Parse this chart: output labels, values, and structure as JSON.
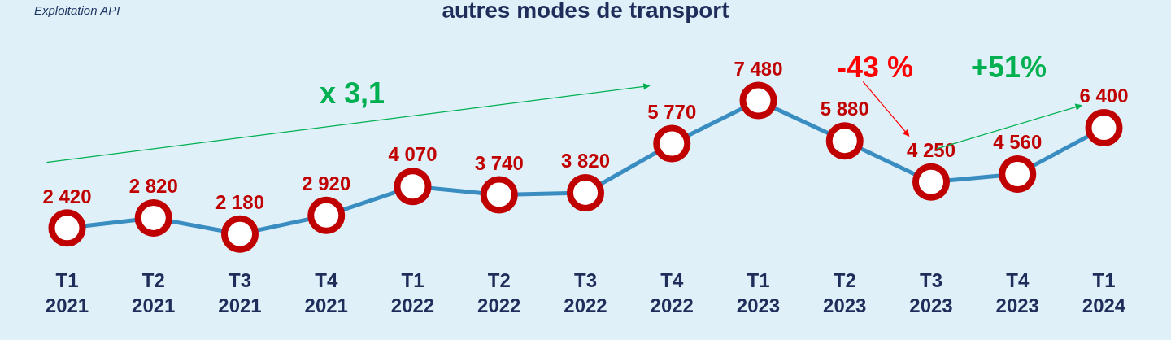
{
  "chart_data": {
    "type": "line",
    "title": "autres modes de transport",
    "categories": [
      "T1 2021",
      "T2 2021",
      "T3 2021",
      "T4 2021",
      "T1 2022",
      "T2 2022",
      "T3 2022",
      "T4 2022",
      "T1 2023",
      "T2 2023",
      "T3 2023",
      "T4 2023",
      "T1 2024"
    ],
    "values": [
      2420,
      2820,
      2180,
      2920,
      4070,
      3740,
      3820,
      5770,
      7480,
      5880,
      4250,
      4560,
      6400
    ],
    "color": "#3a8dc1",
    "marker": "circle",
    "data_labels": true,
    "grid": false,
    "annotations": [
      "Exploitation API",
      "x 3,1",
      "-43 %",
      "+51%"
    ]
  }
}
